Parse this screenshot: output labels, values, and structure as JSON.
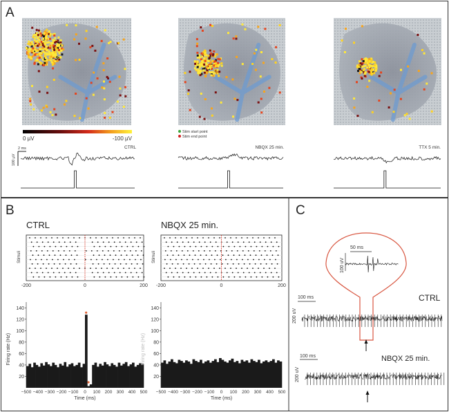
{
  "panel_a": {
    "letter": "A",
    "colorbar": {
      "min_label": "0 µV",
      "max_label": "-100 µV"
    },
    "stim_legend": {
      "start": "Stim start point",
      "end": "Stim end point"
    },
    "scale_time": "2 ms",
    "scale_volt": "100 µV",
    "conditions": [
      "CTRL",
      "NBQX  25 min.",
      "TTX  5 min."
    ]
  },
  "panel_b": {
    "letter": "B",
    "titles": [
      "CTRL",
      "NBQX 25 min."
    ],
    "raster_ylabel": "Stimuli",
    "raster_xticks": [
      "-200",
      "0",
      "200"
    ],
    "hist_ylabel": "Firing rate (Hz)",
    "hist_ylabel_faded": "Firing rate (Hz)",
    "hist_xlabel": "Time (ms)",
    "hist_yticks": [
      "140",
      "120",
      "100",
      "80",
      "60",
      "40",
      "20"
    ],
    "hist_xticks": [
      "−500",
      "−400",
      "−300",
      "−200",
      "−100",
      "0",
      "100",
      "200",
      "300",
      "400",
      "500"
    ]
  },
  "panel_c": {
    "letter": "C",
    "inset_scale": "50 ms",
    "inset_volt": "100 uV",
    "scale_time": "100 ms",
    "scale_volt": "200 uV",
    "traces": [
      "CTRL",
      "NBQX 25 min."
    ]
  },
  "chart_data": [
    {
      "type": "bar",
      "title": "CTRL",
      "xlabel": "Time (ms)",
      "ylabel": "Firing rate (Hz)",
      "xlim": [
        -500,
        500
      ],
      "ylim": [
        0,
        150
      ],
      "bin_width": 20,
      "x": [
        -490,
        -470,
        -450,
        -430,
        -410,
        -390,
        -370,
        -350,
        -330,
        -310,
        -290,
        -270,
        -250,
        -230,
        -210,
        -190,
        -170,
        -150,
        -130,
        -110,
        -90,
        -70,
        -50,
        -30,
        -10,
        10,
        30,
        50,
        70,
        90,
        110,
        130,
        150,
        170,
        190,
        210,
        230,
        250,
        270,
        290,
        310,
        330,
        350,
        370,
        390,
        410,
        430,
        450,
        470,
        490
      ],
      "values": [
        38,
        42,
        36,
        44,
        40,
        37,
        43,
        39,
        45,
        41,
        38,
        44,
        40,
        36,
        42,
        39,
        45,
        37,
        41,
        43,
        38,
        40,
        44,
        36,
        42,
        128,
        3,
        6,
        40,
        44,
        37,
        42,
        39,
        45,
        41,
        38,
        43,
        40,
        37,
        44,
        39,
        42,
        45,
        38,
        41,
        44,
        37,
        40,
        43,
        42
      ]
    },
    {
      "type": "bar",
      "title": "NBQX 25 min.",
      "xlabel": "Time (ms)",
      "ylabel": "Firing rate (Hz)",
      "xlim": [
        -500,
        500
      ],
      "ylim": [
        0,
        150
      ],
      "bin_width": 20,
      "x": [
        -490,
        -470,
        -450,
        -430,
        -410,
        -390,
        -370,
        -350,
        -330,
        -310,
        -290,
        -270,
        -250,
        -230,
        -210,
        -190,
        -170,
        -150,
        -130,
        -110,
        -90,
        -70,
        -50,
        -30,
        -10,
        10,
        30,
        50,
        70,
        90,
        110,
        130,
        150,
        170,
        190,
        210,
        230,
        250,
        270,
        290,
        310,
        330,
        350,
        370,
        390,
        410,
        430,
        450,
        470,
        490
      ],
      "values": [
        44,
        48,
        42,
        46,
        50,
        45,
        43,
        49,
        47,
        44,
        48,
        46,
        42,
        50,
        47,
        45,
        49,
        43,
        46,
        48,
        44,
        47,
        50,
        45,
        52,
        49,
        46,
        44,
        48,
        51,
        45,
        47,
        43,
        49,
        46,
        48,
        44,
        50,
        47,
        45,
        49,
        43,
        46,
        48,
        45,
        47,
        50,
        44,
        48,
        46
      ]
    }
  ]
}
